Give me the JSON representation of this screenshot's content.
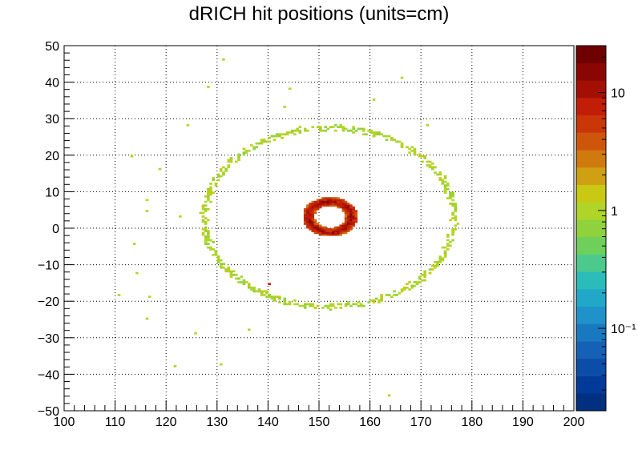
{
  "chart_data": {
    "type": "heatmap",
    "title": "dRICH hit positions (units=cm)",
    "xlabel": "",
    "ylabel": "",
    "xlim": [
      100,
      200
    ],
    "ylim": [
      -50,
      50
    ],
    "grid": true,
    "z_scale": "log",
    "z_range": [
      0.02,
      25
    ],
    "x_ticks": [
      "100",
      "110",
      "120",
      "130",
      "140",
      "150",
      "160",
      "170",
      "180",
      "190",
      "200"
    ],
    "y_ticks": [
      "50",
      "40",
      "30",
      "20",
      "10",
      "0",
      "−10",
      "−20",
      "−30",
      "−40",
      "−50"
    ],
    "z_ticks": [
      {
        "label": "10",
        "value": 10
      },
      {
        "label": "1",
        "value": 1
      },
      {
        "label": "10⁻¹",
        "value": 0.1
      }
    ],
    "palette": [
      "#00307f",
      "#013a98",
      "#0b4da8",
      "#1461b6",
      "#1979c0",
      "#1e92c9",
      "#21a8c9",
      "#2bbcba",
      "#4cc98c",
      "#6ed05a",
      "#8fd23d",
      "#b0d528",
      "#c9c914",
      "#cfa011",
      "#d0790e",
      "#cd560b",
      "#c93608",
      "#c21e06",
      "#a40f04",
      "#8a0602",
      "#6f0000"
    ],
    "features": [
      {
        "kind": "ring",
        "center": [
          152.0,
          3.2
        ],
        "radius": 4.2,
        "width": 1.2,
        "value": 8
      },
      {
        "kind": "ring",
        "center": [
          152.0,
          3.0
        ],
        "radius": 24.5,
        "width": 0.7,
        "value": 1
      }
    ],
    "points": [
      {
        "x": 131.0,
        "y": 46.0,
        "z": 1
      },
      {
        "x": 166.0,
        "y": 41.0,
        "z": 1
      },
      {
        "x": 128.2,
        "y": 38.5,
        "z": 1
      },
      {
        "x": 144.3,
        "y": 38.0,
        "z": 1
      },
      {
        "x": 160.5,
        "y": 35.2,
        "z": 1
      },
      {
        "x": 143.0,
        "y": 33.0,
        "z": 1
      },
      {
        "x": 124.3,
        "y": 28.0,
        "z": 1
      },
      {
        "x": 171.0,
        "y": 28.0,
        "z": 1
      },
      {
        "x": 113.0,
        "y": 19.5,
        "z": 1
      },
      {
        "x": 118.5,
        "y": 16.0,
        "z": 1
      },
      {
        "x": 116.0,
        "y": 7.5,
        "z": 1
      },
      {
        "x": 116.0,
        "y": 4.5,
        "z": 1
      },
      {
        "x": 122.5,
        "y": 3.0,
        "z": 1
      },
      {
        "x": 113.5,
        "y": -4.5,
        "z": 1
      },
      {
        "x": 114.0,
        "y": -12.5,
        "z": 1
      },
      {
        "x": 110.5,
        "y": -18.5,
        "z": 1
      },
      {
        "x": 116.5,
        "y": -19.0,
        "z": 1
      },
      {
        "x": 116.2,
        "y": -25.0,
        "z": 1
      },
      {
        "x": 125.5,
        "y": -29.0,
        "z": 1
      },
      {
        "x": 136.0,
        "y": -28.0,
        "z": 1
      },
      {
        "x": 130.5,
        "y": -37.5,
        "z": 1
      },
      {
        "x": 121.5,
        "y": -38.0,
        "z": 1
      },
      {
        "x": 163.5,
        "y": -46.0,
        "z": 1
      },
      {
        "x": 140.0,
        "y": -15.5,
        "z": 8
      }
    ]
  }
}
